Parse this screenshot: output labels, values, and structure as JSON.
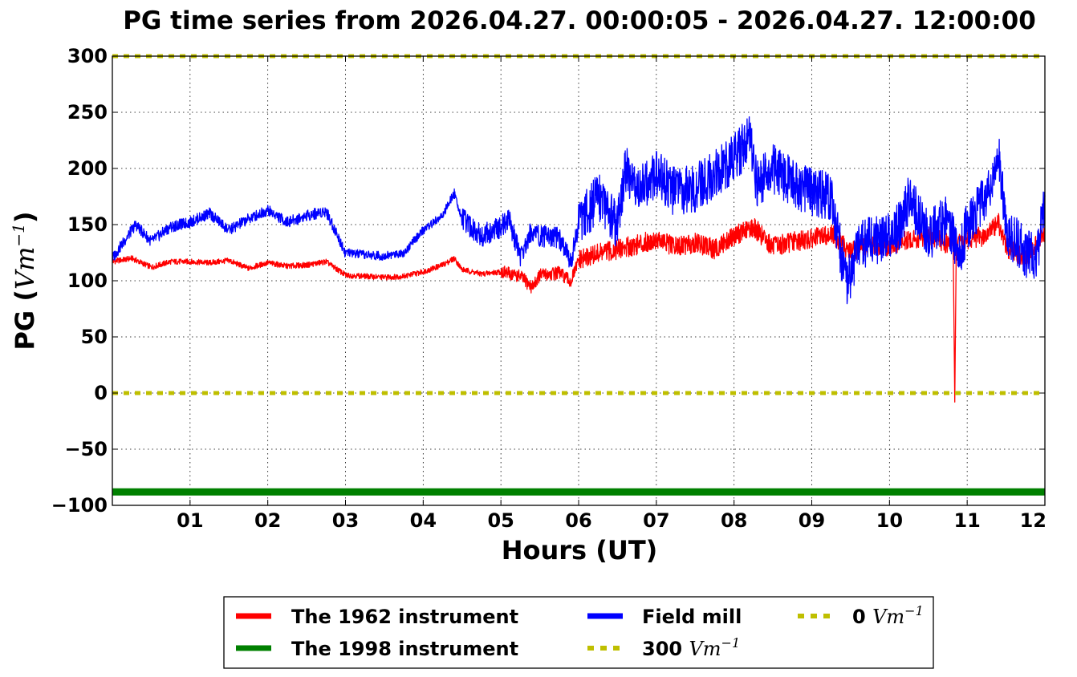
{
  "chart_data": {
    "type": "line",
    "title": "PG time series from 2026.04.27. 00:00:05 - 2026.04.27. 12:00:00",
    "xlabel": "Hours (UT)",
    "ylabel_text": "PG (",
    "ylabel_unit": "Vm",
    "ylabel_exp": "−1",
    "ylabel_close": ")",
    "xlim": [
      0,
      12
    ],
    "ylim": [
      -100,
      300
    ],
    "xticks": [
      1,
      2,
      3,
      4,
      5,
      6,
      7,
      8,
      9,
      10,
      11,
      12
    ],
    "xtick_labels": [
      "01",
      "02",
      "03",
      "04",
      "05",
      "06",
      "07",
      "08",
      "09",
      "10",
      "11",
      "12"
    ],
    "yticks": [
      -100,
      -50,
      0,
      50,
      100,
      150,
      200,
      250,
      300
    ],
    "ytick_labels": [
      "−100",
      "−50",
      "0",
      "50",
      "100",
      "150",
      "200",
      "250",
      "300"
    ],
    "grid": true,
    "legend_placement": "below",
    "series": [
      {
        "name": "The 1962 instrument",
        "color": "#ff0000",
        "style": "solid",
        "x": [
          0,
          0.25,
          0.5,
          0.75,
          1.0,
          1.25,
          1.5,
          1.75,
          2.0,
          2.25,
          2.5,
          2.75,
          3.0,
          3.25,
          3.5,
          3.75,
          4.0,
          4.25,
          4.4,
          4.5,
          4.75,
          5.0,
          5.25,
          5.4,
          5.5,
          5.75,
          5.9,
          6.0,
          6.25,
          6.5,
          6.75,
          7.0,
          7.25,
          7.5,
          7.75,
          8.0,
          8.25,
          8.5,
          8.75,
          9.0,
          9.25,
          9.5,
          9.75,
          10.0,
          10.25,
          10.5,
          10.75,
          10.82,
          10.84,
          10.86,
          11.0,
          11.25,
          11.4,
          11.5,
          11.75,
          12.0
        ],
        "y": [
          117,
          120,
          112,
          117,
          117,
          116,
          118,
          111,
          116,
          113,
          114,
          117,
          105,
          104,
          103,
          104,
          108,
          114,
          120,
          110,
          106,
          108,
          104,
          94,
          105,
          107,
          99,
          118,
          124,
          128,
          132,
          137,
          130,
          134,
          128,
          140,
          148,
          130,
          135,
          137,
          142,
          126,
          132,
          130,
          136,
          140,
          133,
          135,
          -8,
          132,
          137,
          140,
          152,
          130,
          120,
          143
        ]
      },
      {
        "name": "The 1998 instrument",
        "color": "#008000",
        "style": "solid",
        "x": [
          0,
          12
        ],
        "y": [
          -88,
          -88
        ]
      },
      {
        "name": "Field mill",
        "color": "#0000ff",
        "style": "solid",
        "x": [
          0,
          0.15,
          0.3,
          0.5,
          0.75,
          1.0,
          1.25,
          1.5,
          1.75,
          2.0,
          2.25,
          2.5,
          2.75,
          3.0,
          3.25,
          3.5,
          3.75,
          4.0,
          4.25,
          4.4,
          4.5,
          4.75,
          5.0,
          5.1,
          5.25,
          5.4,
          5.5,
          5.75,
          5.9,
          6.0,
          6.25,
          6.5,
          6.6,
          6.75,
          7.0,
          7.25,
          7.5,
          7.75,
          8.0,
          8.2,
          8.3,
          8.5,
          8.75,
          9.0,
          9.25,
          9.45,
          9.6,
          9.75,
          10.0,
          10.15,
          10.25,
          10.5,
          10.75,
          10.9,
          11.0,
          11.25,
          11.4,
          11.5,
          11.75,
          11.9,
          12.0
        ],
        "y": [
          120,
          135,
          150,
          135,
          148,
          152,
          160,
          145,
          155,
          163,
          152,
          158,
          162,
          125,
          123,
          122,
          125,
          145,
          158,
          178,
          155,
          140,
          148,
          155,
          122,
          145,
          140,
          138,
          118,
          150,
          175,
          150,
          200,
          180,
          195,
          178,
          182,
          195,
          210,
          225,
          185,
          200,
          188,
          178,
          175,
          95,
          130,
          135,
          140,
          150,
          175,
          140,
          155,
          120,
          150,
          175,
          215,
          145,
          125,
          120,
          175
        ]
      },
      {
        "name": "300 Vm−1",
        "color": "#bfbf00",
        "style": "dotted",
        "x": [
          0,
          12
        ],
        "y": [
          300,
          300
        ]
      },
      {
        "name": "0 Vm−1",
        "color": "#bfbf00",
        "style": "dotted",
        "x": [
          0,
          12
        ],
        "y": [
          0,
          0
        ]
      }
    ],
    "legend": [
      {
        "label": "The 1962 instrument",
        "prefix": "",
        "unit": "",
        "exp": "",
        "color": "#ff0000",
        "style": "solid"
      },
      {
        "label": "The 1998 instrument",
        "prefix": "",
        "unit": "",
        "exp": "",
        "color": "#008000",
        "style": "solid"
      },
      {
        "label": "Field mill",
        "prefix": "",
        "unit": "",
        "exp": "",
        "color": "#0000ff",
        "style": "solid"
      },
      {
        "label": "",
        "prefix": "300",
        "unit": "Vm",
        "exp": "−1",
        "color": "#bfbf00",
        "style": "dotted"
      },
      {
        "label": "",
        "prefix": "0",
        "unit": "Vm",
        "exp": "−1",
        "color": "#bfbf00",
        "style": "dotted"
      }
    ]
  }
}
